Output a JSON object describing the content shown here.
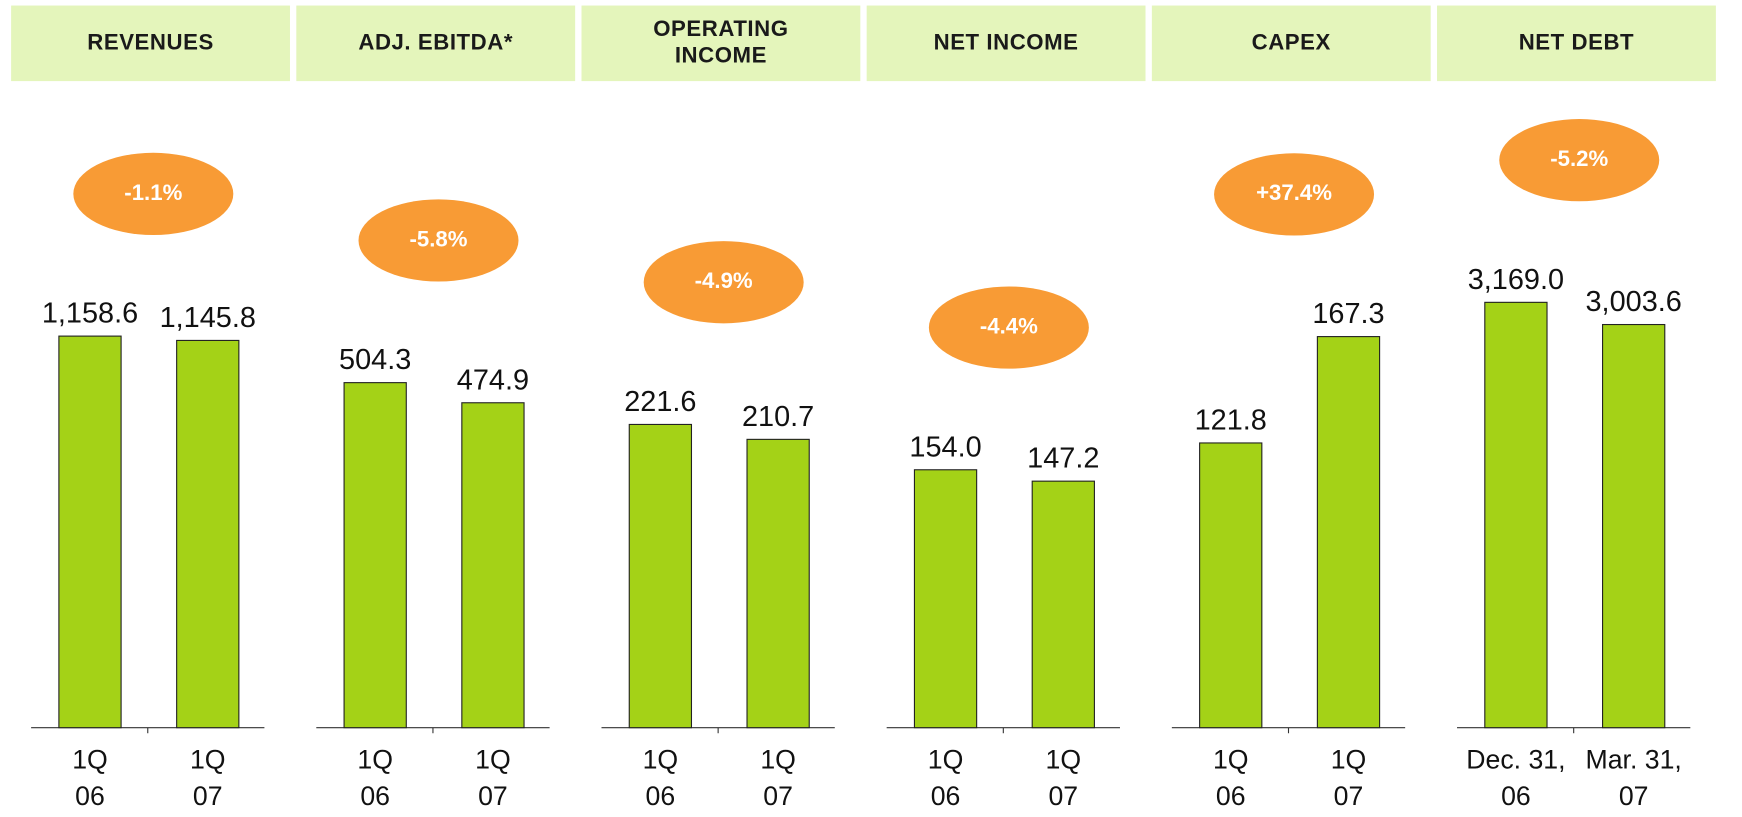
{
  "chart_data": [
    {
      "type": "bar",
      "title": "REVENUES",
      "change": "-1.1%",
      "categories": [
        "1Q 06",
        "1Q 07"
      ],
      "values": [
        1158.6,
        1145.8
      ],
      "ylim": [
        0,
        1660
      ],
      "color": "#a4d217"
    },
    {
      "type": "bar",
      "title": "ADJ. EBITDA*",
      "change": "-5.8%",
      "categories": [
        "1Q 06",
        "1Q 07"
      ],
      "values": [
        504.3,
        474.9
      ],
      "ylim": [
        0,
        820
      ],
      "color": "#a4d217"
    },
    {
      "type": "bar",
      "title": "OPERATING INCOME",
      "change": "-4.9%",
      "categories": [
        "1Q 06",
        "1Q 07"
      ],
      "values": [
        221.6,
        210.7
      ],
      "ylim": [
        0,
        410
      ],
      "color": "#a4d217"
    },
    {
      "type": "bar",
      "title": "NET INCOME",
      "change": "-4.4%",
      "categories": [
        "1Q 06",
        "1Q 07"
      ],
      "values": [
        154.0,
        147.2
      ],
      "ylim": [
        0,
        335
      ],
      "color": "#a4d217"
    },
    {
      "type": "bar",
      "title": "CAPEX",
      "change": "+37.4%",
      "categories": [
        "1Q 06",
        "1Q 07"
      ],
      "values": [
        121.8,
        167.3
      ],
      "ylim": [
        0,
        240
      ],
      "color": "#a4d217"
    },
    {
      "type": "bar",
      "title": "NET DEBT",
      "change": "-5.2%",
      "categories": [
        "Dec. 31, 06",
        "Mar. 31, 07"
      ],
      "values": [
        3169.0,
        3003.6
      ],
      "ylim": [
        0,
        4180
      ],
      "color": "#a4d217"
    }
  ]
}
